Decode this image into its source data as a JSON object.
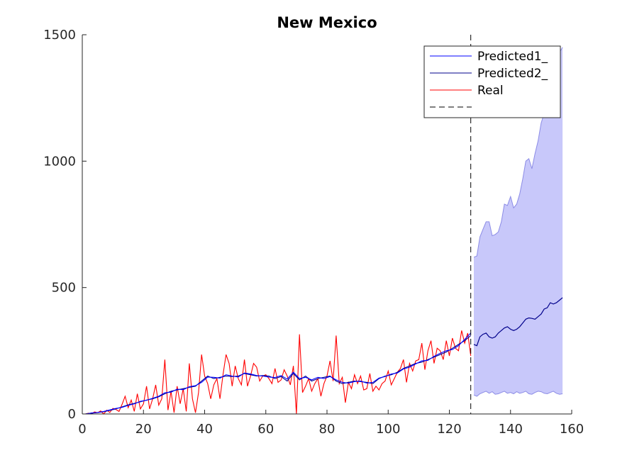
{
  "chart_data": {
    "type": "line",
    "title": "New Mexico",
    "xlim": [
      0,
      160
    ],
    "ylim": [
      0,
      1500
    ],
    "xticks": [
      "0",
      "20",
      "40",
      "60",
      "80",
      "100",
      "120",
      "140",
      "160"
    ],
    "yticks": [
      "0",
      "500",
      "1000",
      "1500"
    ],
    "grid": false,
    "legend_placement": "top-right",
    "legend": [
      "Predicted1_",
      "Predicted2_",
      "Real",
      ""
    ],
    "vline_x": 127,
    "colors": {
      "predicted1": "#0000ff",
      "predicted2": "#00008b",
      "real": "#ff0000",
      "band": "#c8c8fa",
      "band_edge": "#8c8ce6",
      "vline": "#000000"
    },
    "series": [
      {
        "name": "Real",
        "x": [
          1,
          2,
          3,
          4,
          5,
          6,
          7,
          8,
          9,
          10,
          11,
          12,
          13,
          14,
          15,
          16,
          17,
          18,
          19,
          20,
          21,
          22,
          23,
          24,
          25,
          26,
          27,
          28,
          29,
          30,
          31,
          32,
          33,
          34,
          35,
          36,
          37,
          38,
          39,
          40,
          41,
          42,
          43,
          44,
          45,
          46,
          47,
          48,
          49,
          50,
          51,
          52,
          53,
          54,
          55,
          56,
          57,
          58,
          59,
          60,
          61,
          62,
          63,
          64,
          65,
          66,
          67,
          68,
          69,
          70,
          71,
          72,
          73,
          74,
          75,
          76,
          77,
          78,
          79,
          80,
          81,
          82,
          83,
          84,
          85,
          86,
          87,
          88,
          89,
          90,
          91,
          92,
          93,
          94,
          95,
          96,
          97,
          98,
          99,
          100,
          101,
          102,
          103,
          104,
          105,
          106,
          107,
          108,
          109,
          110,
          111,
          112,
          113,
          114,
          115,
          116,
          117,
          118,
          119,
          120,
          121,
          122,
          123,
          124,
          125,
          126,
          127
        ],
        "y": [
          0,
          3,
          0,
          8,
          5,
          12,
          0,
          15,
          6,
          22,
          18,
          10,
          38,
          70,
          25,
          55,
          10,
          80,
          20,
          40,
          110,
          20,
          60,
          115,
          35,
          60,
          215,
          15,
          90,
          5,
          110,
          40,
          100,
          10,
          200,
          60,
          5,
          85,
          235,
          150,
          120,
          60,
          115,
          140,
          60,
          155,
          235,
          200,
          110,
          190,
          140,
          115,
          215,
          110,
          150,
          200,
          185,
          130,
          150,
          155,
          140,
          120,
          180,
          125,
          135,
          175,
          150,
          115,
          190,
          0,
          315,
          85,
          110,
          140,
          90,
          120,
          140,
          70,
          120,
          150,
          210,
          130,
          310,
          120,
          145,
          45,
          125,
          100,
          155,
          120,
          150,
          95,
          100,
          160,
          90,
          110,
          95,
          120,
          130,
          170,
          115,
          140,
          165,
          180,
          215,
          125,
          200,
          170,
          210,
          215,
          280,
          175,
          250,
          290,
          200,
          260,
          250,
          215,
          290,
          230,
          300,
          260,
          250,
          330,
          280,
          320,
          230
        ]
      },
      {
        "name": "Predicted2_",
        "x": [
          1,
          3,
          5,
          7,
          9,
          11,
          13,
          15,
          17,
          19,
          21,
          23,
          25,
          27,
          29,
          31,
          33,
          35,
          37,
          39,
          41,
          43,
          45,
          47,
          49,
          51,
          53,
          55,
          57,
          59,
          61,
          63,
          65,
          67,
          69,
          71,
          73,
          75,
          77,
          79,
          81,
          83,
          85,
          87,
          89,
          91,
          93,
          95,
          97,
          99,
          101,
          103,
          105,
          107,
          109,
          111,
          113,
          115,
          117,
          119,
          121,
          123,
          125,
          127
        ],
        "y": [
          0,
          3,
          6,
          9,
          14,
          20,
          28,
          36,
          42,
          48,
          55,
          60,
          68,
          80,
          90,
          95,
          100,
          105,
          110,
          130,
          150,
          140,
          145,
          150,
          148,
          150,
          160,
          155,
          150,
          152,
          150,
          140,
          148,
          130,
          160,
          135,
          150,
          130,
          140,
          145,
          150,
          130,
          120,
          125,
          130,
          128,
          125,
          120,
          140,
          150,
          155,
          165,
          180,
          190,
          200,
          205,
          215,
          225,
          235,
          245,
          260,
          275,
          290,
          310
        ]
      },
      {
        "name": "Predicted1_",
        "x": [
          1,
          3,
          5,
          7,
          9,
          11,
          13,
          15,
          17,
          19,
          21,
          23,
          25,
          27,
          29,
          31,
          33,
          35,
          37,
          39,
          41,
          43,
          45,
          47,
          49,
          51,
          53,
          55,
          57,
          59,
          61,
          63,
          65,
          67,
          69,
          71,
          73,
          75,
          77,
          79,
          81,
          83,
          85,
          87,
          89,
          91,
          93,
          95,
          97,
          99,
          101,
          103,
          105,
          107,
          109,
          111,
          113,
          115,
          117,
          119,
          121,
          123,
          125,
          127
        ],
        "y": [
          0,
          4,
          6,
          10,
          16,
          22,
          26,
          34,
          40,
          50,
          54,
          62,
          70,
          84,
          86,
          98,
          96,
          108,
          112,
          125,
          146,
          145,
          142,
          155,
          150,
          146,
          162,
          158,
          152,
          150,
          146,
          144,
          152,
          138,
          165,
          140,
          145,
          135,
          145,
          140,
          148,
          135,
          125,
          122,
          128,
          130,
          122,
          125,
          142,
          148,
          158,
          162,
          178,
          185,
          198,
          210,
          212,
          228,
          240,
          250,
          255,
          270,
          295,
          320
        ]
      }
    ],
    "band": {
      "x": [
        128,
        129,
        130,
        131,
        132,
        133,
        134,
        135,
        136,
        137,
        138,
        139,
        140,
        141,
        142,
        143,
        144,
        145,
        146,
        147,
        148,
        149,
        150,
        151,
        152,
        153,
        154,
        155,
        156,
        157
      ],
      "upper": [
        620,
        625,
        700,
        730,
        760,
        760,
        705,
        710,
        720,
        760,
        830,
        825,
        860,
        815,
        830,
        870,
        930,
        1000,
        1010,
        970,
        1030,
        1080,
        1150,
        1190,
        1270,
        1340,
        1340,
        1360,
        1430,
        1450
      ],
      "lower": [
        75,
        70,
        80,
        85,
        90,
        82,
        88,
        78,
        80,
        85,
        90,
        82,
        85,
        80,
        88,
        82,
        85,
        90,
        80,
        78,
        85,
        90,
        88,
        82,
        80,
        85,
        90,
        82,
        78,
        80
      ],
      "median": [
        275,
        270,
        305,
        315,
        320,
        305,
        300,
        305,
        320,
        330,
        340,
        345,
        335,
        330,
        335,
        345,
        360,
        375,
        380,
        378,
        375,
        385,
        395,
        415,
        420,
        440,
        435,
        440,
        450,
        460
      ]
    }
  }
}
